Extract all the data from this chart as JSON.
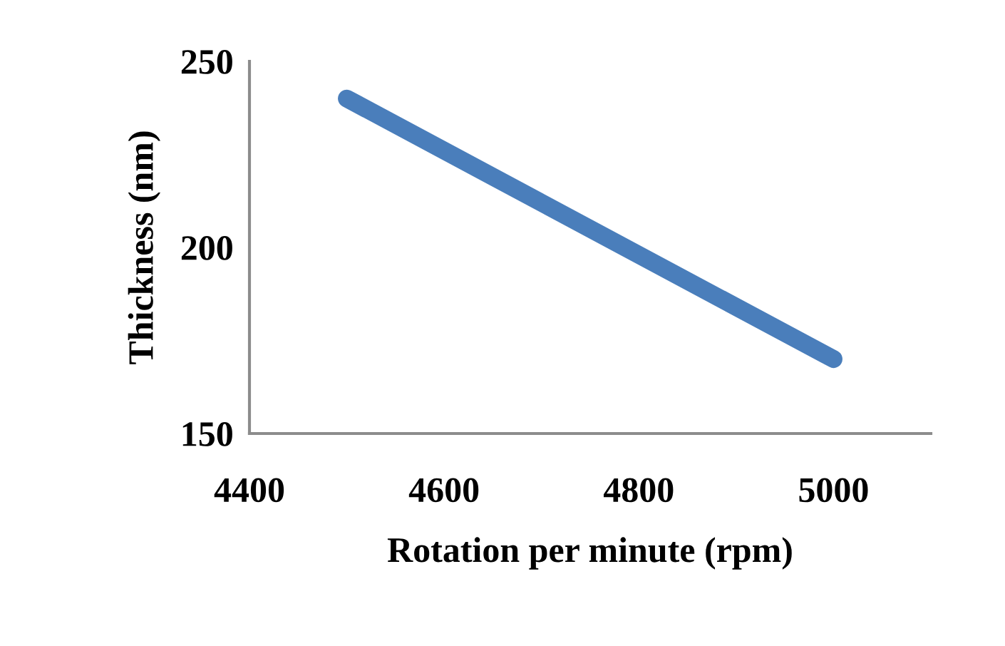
{
  "chart_data": {
    "type": "line",
    "xlabel": "Rotation per minute (rpm)",
    "ylabel": "Thickness (nm)",
    "x": [
      4500,
      5000
    ],
    "series": [
      {
        "color": "#4a7ebb",
        "values": [
          240,
          170
        ]
      }
    ],
    "xlim": [
      4400,
      5100
    ],
    "xticks": [
      4400,
      4600,
      4800,
      5000
    ],
    "ylim": [
      150,
      250
    ],
    "yticks": [
      150,
      200,
      250
    ],
    "grid": false,
    "legend": false,
    "line_style": "solid"
  }
}
